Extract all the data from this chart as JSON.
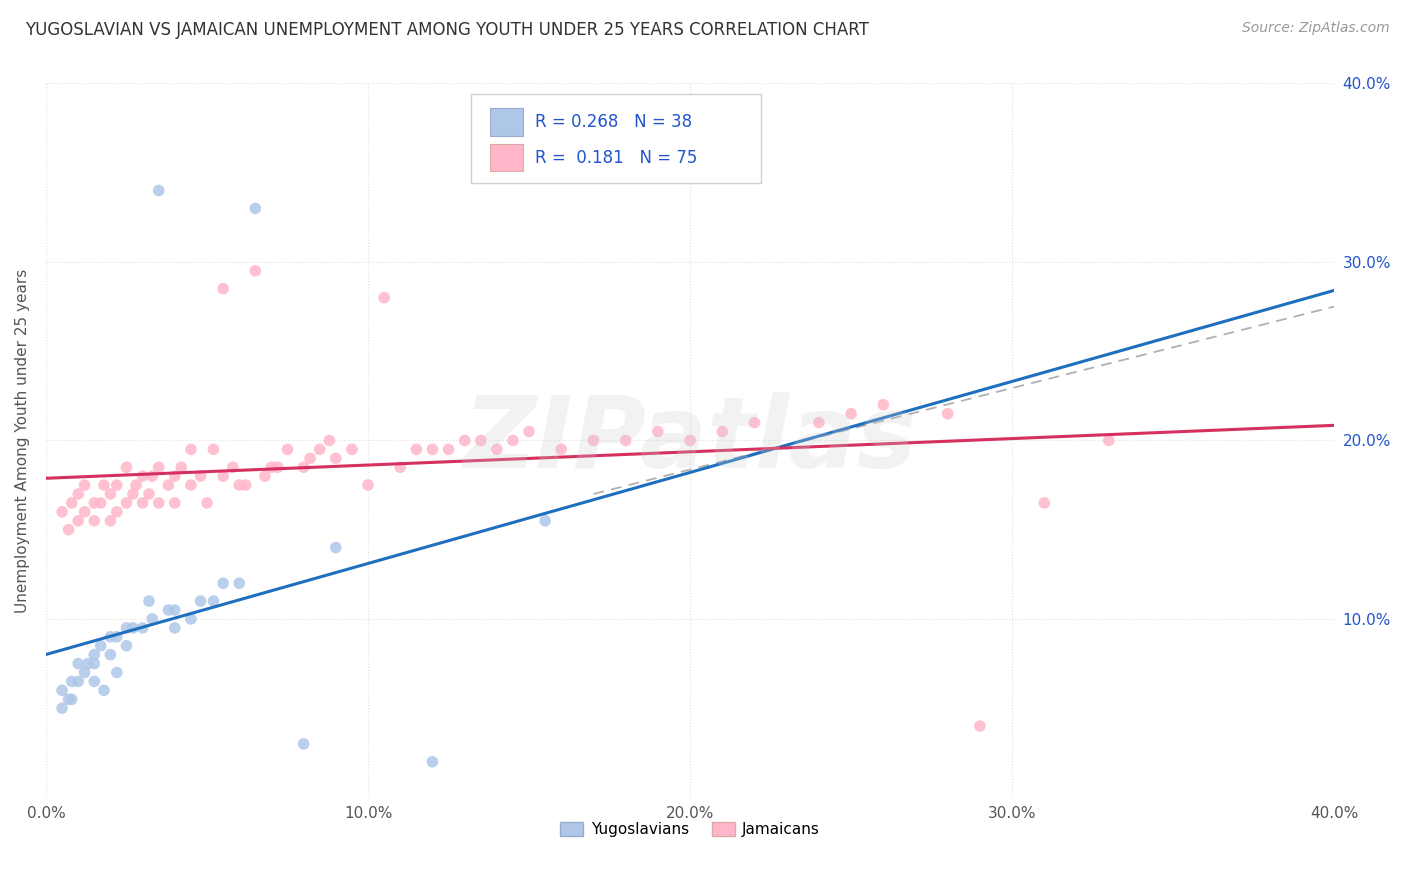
{
  "title": "YUGOSLAVIAN VS JAMAICAN UNEMPLOYMENT AMONG YOUTH UNDER 25 YEARS CORRELATION CHART",
  "source": "Source: ZipAtlas.com",
  "ylabel": "Unemployment Among Youth under 25 years",
  "xlim": [
    0.0,
    0.4
  ],
  "ylim": [
    0.0,
    0.4
  ],
  "xtick_vals": [
    0.0,
    0.1,
    0.2,
    0.3,
    0.4
  ],
  "ytick_vals": [
    0.0,
    0.1,
    0.2,
    0.3,
    0.4
  ],
  "blue_color": "#aec7e8",
  "pink_color": "#ffb6c8",
  "blue_line_color": "#1f6fbf",
  "pink_line_color": "#d63060",
  "dashed_line_color": "#b0b0b0",
  "background_color": "#ffffff",
  "grid_color": "#e0e0e0",
  "legend_text_color": "#2255cc",
  "right_tick_color": "#2255cc",
  "watermark": "ZIPatlas",
  "legend_blue_label": "Yugoslavians",
  "legend_pink_label": "Jamaicans",
  "yug_r": 0.268,
  "yug_n": 38,
  "jam_r": 0.181,
  "jam_n": 75,
  "yug_x": [
    0.005,
    0.005,
    0.007,
    0.008,
    0.008,
    0.01,
    0.01,
    0.012,
    0.013,
    0.015,
    0.015,
    0.015,
    0.017,
    0.018,
    0.02,
    0.02,
    0.022,
    0.022,
    0.025,
    0.025,
    0.027,
    0.03,
    0.032,
    0.033,
    0.035,
    0.038,
    0.04,
    0.04,
    0.045,
    0.048,
    0.052,
    0.055,
    0.06,
    0.065,
    0.08,
    0.09,
    0.12,
    0.155
  ],
  "yug_y": [
    0.05,
    0.06,
    0.055,
    0.065,
    0.055,
    0.065,
    0.075,
    0.07,
    0.075,
    0.075,
    0.08,
    0.065,
    0.085,
    0.06,
    0.09,
    0.08,
    0.07,
    0.09,
    0.085,
    0.095,
    0.095,
    0.095,
    0.11,
    0.1,
    0.34,
    0.105,
    0.105,
    0.095,
    0.1,
    0.11,
    0.11,
    0.12,
    0.12,
    0.33,
    0.03,
    0.14,
    0.02,
    0.155
  ],
  "jam_x": [
    0.005,
    0.007,
    0.008,
    0.01,
    0.01,
    0.012,
    0.012,
    0.015,
    0.015,
    0.017,
    0.018,
    0.02,
    0.02,
    0.022,
    0.022,
    0.025,
    0.025,
    0.027,
    0.028,
    0.03,
    0.03,
    0.032,
    0.033,
    0.035,
    0.035,
    0.038,
    0.04,
    0.04,
    0.042,
    0.045,
    0.045,
    0.048,
    0.05,
    0.052,
    0.055,
    0.055,
    0.058,
    0.06,
    0.062,
    0.065,
    0.068,
    0.07,
    0.072,
    0.075,
    0.08,
    0.082,
    0.085,
    0.088,
    0.09,
    0.095,
    0.1,
    0.105,
    0.11,
    0.115,
    0.12,
    0.125,
    0.13,
    0.135,
    0.14,
    0.145,
    0.15,
    0.16,
    0.17,
    0.18,
    0.19,
    0.2,
    0.21,
    0.22,
    0.24,
    0.25,
    0.26,
    0.28,
    0.29,
    0.31,
    0.33
  ],
  "jam_y": [
    0.16,
    0.15,
    0.165,
    0.155,
    0.17,
    0.16,
    0.175,
    0.155,
    0.165,
    0.165,
    0.175,
    0.155,
    0.17,
    0.16,
    0.175,
    0.165,
    0.185,
    0.17,
    0.175,
    0.165,
    0.18,
    0.17,
    0.18,
    0.165,
    0.185,
    0.175,
    0.18,
    0.165,
    0.185,
    0.175,
    0.195,
    0.18,
    0.165,
    0.195,
    0.18,
    0.285,
    0.185,
    0.175,
    0.175,
    0.295,
    0.18,
    0.185,
    0.185,
    0.195,
    0.185,
    0.19,
    0.195,
    0.2,
    0.19,
    0.195,
    0.175,
    0.28,
    0.185,
    0.195,
    0.195,
    0.195,
    0.2,
    0.2,
    0.195,
    0.2,
    0.205,
    0.195,
    0.2,
    0.2,
    0.205,
    0.2,
    0.205,
    0.21,
    0.21,
    0.215,
    0.22,
    0.215,
    0.04,
    0.165,
    0.2
  ]
}
